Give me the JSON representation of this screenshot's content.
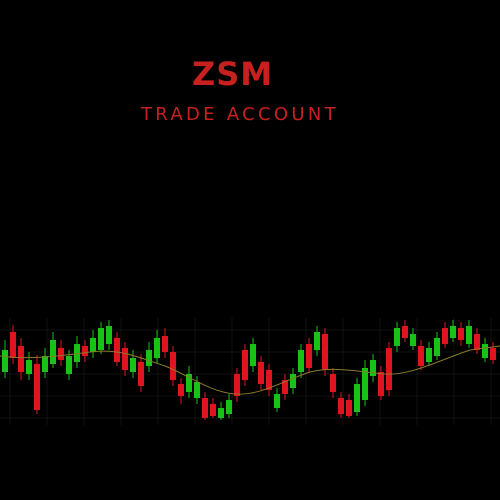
{
  "logo": {
    "brand": "ZSM",
    "tagline": "TRADE ACCOUNT",
    "icon": "candlestick-chart-icon"
  },
  "colors": {
    "background": "#000000",
    "brand_red": "#c8201e",
    "candle_up": "#19c119",
    "candle_down": "#e0141a",
    "moving_average": "#8a7a2a",
    "grid": "#1e1e1e"
  }
}
